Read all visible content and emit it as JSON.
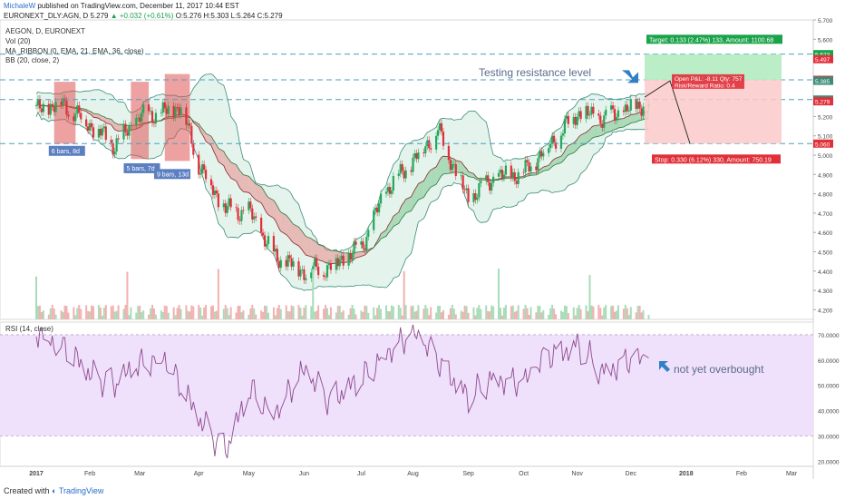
{
  "header": {
    "author": "MichaleW",
    "published": "published on TradingView.com, December 11, 2017 10:44 EST",
    "symbol_line": "EURONEXT_DLY:AGN, D",
    "price": "5.279",
    "change": "▲ +0.032 (+0.61%)",
    "ohlc": "O:5.276 H:5.303 L:5.264 C:5.279"
  },
  "legend": {
    "title": "AEGON, D, EURONEXT",
    "vol": "Vol (20)",
    "ribbon": "MA_RIBBON (0, EMA, 21, EMA, 36, close)",
    "bb": "BB (20, close, 2)",
    "rsi": "RSI (14, close)"
  },
  "annotations": {
    "resistance": "Testing resistance level",
    "overbought": "not yet overbought",
    "target": "Target: 0.133 (2.47%) 133, Amount: 1100.68",
    "stop": "Stop: 0.330 (6.12%) 330, Amount: 750.19",
    "open_pl": "Open P&L: -8.11 Qty: 757",
    "risk_reward": "Risk/Reward Ratio: 0.4",
    "bars1": "6 bars, 8d",
    "bars2": "5 bars, 7d",
    "bars3": "9 bars, 13d"
  },
  "price_tags": [
    "5.523",
    "5.497",
    "5.390",
    "5.385",
    "5.288",
    "5.279",
    "5.060"
  ],
  "footer": {
    "created_with": "Created with",
    "brand": "TradingView"
  },
  "colors": {
    "up": "#26a65b",
    "down": "#e0303a",
    "bb_fill": "#d8f0e6",
    "bb_line": "#3a8c78",
    "rsi_line": "#8e4a8e",
    "rsi_band": "#efe0fb",
    "dashed": "#4a9fbf",
    "target_zone": "#b4ecc0",
    "stop_zone": "#fbc9c9",
    "arrow": "#2f80c7"
  },
  "chart_data": [
    {
      "type": "line",
      "title": "AEGON, D, EURONEXT",
      "x": [
        "2017-01-02",
        "2017-01-16",
        "2017-02-01",
        "2017-02-15",
        "2017-03-01",
        "2017-03-15",
        "2017-03-24",
        "2017-04-03",
        "2017-04-18",
        "2017-05-02",
        "2017-05-15",
        "2017-06-01",
        "2017-06-15",
        "2017-07-03",
        "2017-07-17",
        "2017-08-01",
        "2017-08-15",
        "2017-09-01",
        "2017-09-15",
        "2017-10-02",
        "2017-10-16",
        "2017-11-01",
        "2017-11-15",
        "2017-12-01",
        "2017-12-11"
      ],
      "series": [
        {
          "name": "close",
          "values": [
            5.23,
            5.27,
            5.16,
            5.05,
            5.2,
            5.22,
            5.26,
            4.95,
            4.72,
            4.7,
            4.48,
            4.4,
            4.42,
            4.52,
            4.82,
            4.97,
            5.13,
            4.77,
            4.88,
            4.91,
            5.05,
            5.22,
            5.19,
            5.24,
            5.28
          ]
        }
      ],
      "x_tick_labels": [
        "2017",
        "Feb",
        "Mar",
        "Apr",
        "May",
        "Jun",
        "Jul",
        "Aug",
        "Sep",
        "Oct",
        "Nov",
        "Dec",
        "2018",
        "Feb",
        "Mar"
      ],
      "y_tick_labels": [
        "4.200",
        "4.300",
        "4.400",
        "4.500",
        "4.600",
        "4.700",
        "4.800",
        "4.900",
        "5.000",
        "5.100",
        "5.200",
        "5.300",
        "5.400",
        "5.500",
        "5.600",
        "5.700"
      ],
      "ylim": [
        4.15,
        5.7
      ],
      "horizontal_levels": [
        5.523,
        5.39,
        5.288,
        5.06
      ]
    },
    {
      "type": "line",
      "title": "RSI (14, close)",
      "x": [
        "2017-01-02",
        "2017-01-16",
        "2017-02-01",
        "2017-02-15",
        "2017-03-01",
        "2017-03-15",
        "2017-04-03",
        "2017-04-18",
        "2017-05-02",
        "2017-05-15",
        "2017-06-01",
        "2017-06-15",
        "2017-07-03",
        "2017-07-17",
        "2017-08-01",
        "2017-08-15",
        "2017-09-01",
        "2017-09-15",
        "2017-10-02",
        "2017-10-16",
        "2017-11-01",
        "2017-11-15",
        "2017-12-01",
        "2017-12-11"
      ],
      "series": [
        {
          "name": "RSI",
          "values": [
            72,
            66,
            54,
            50,
            58,
            62,
            36,
            24,
            48,
            40,
            55,
            44,
            52,
            64,
            70,
            60,
            45,
            54,
            50,
            62,
            66,
            56,
            60,
            59
          ]
        }
      ],
      "y_tick_labels": [
        "20.0000",
        "30.0000",
        "40.0000",
        "50.0000",
        "60.0000",
        "70.0000"
      ],
      "ylim": [
        18,
        75
      ],
      "bands": [
        30,
        70
      ]
    }
  ]
}
